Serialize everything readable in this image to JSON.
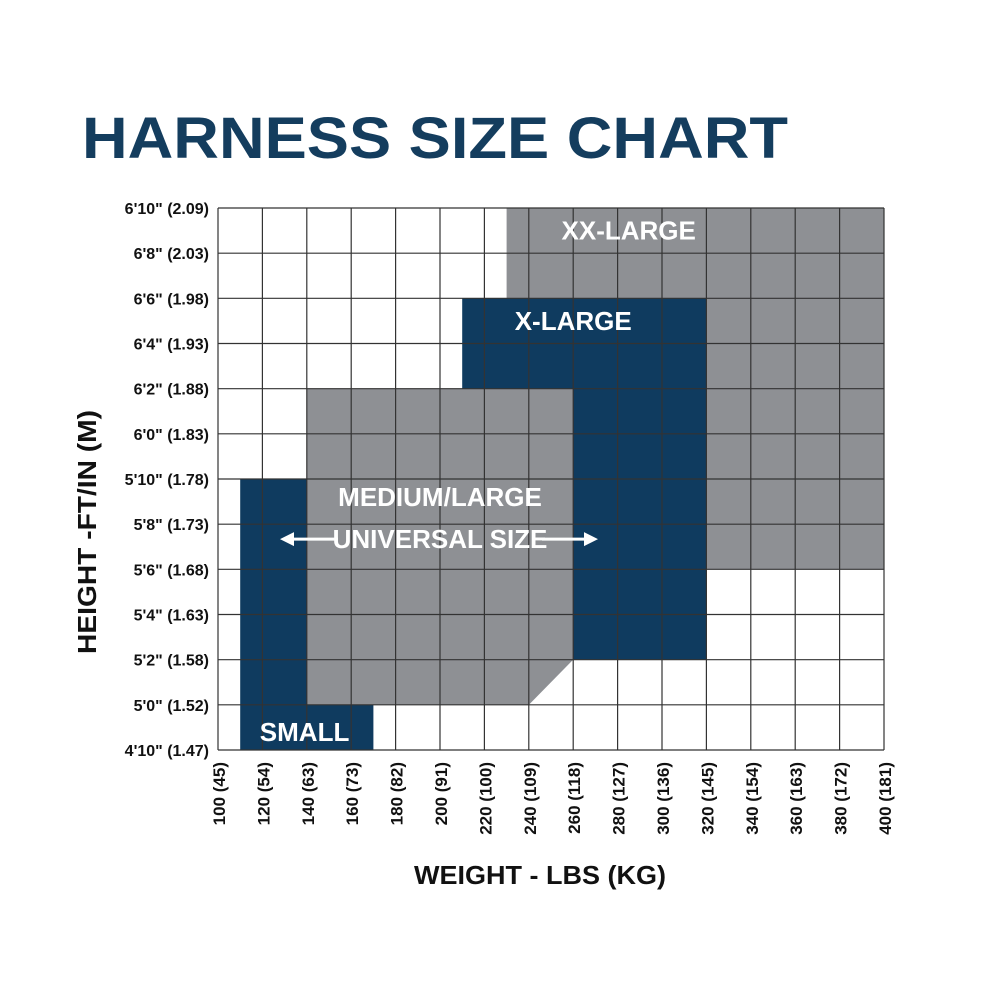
{
  "title": "HARNESS SIZE CHART",
  "colors": {
    "title": "#143d5e",
    "navy": "#0f3b5f",
    "gray": "#8e9094",
    "grid": "#333333",
    "label_text": "#ffffff"
  },
  "chart_data": {
    "type": "region",
    "title": "HARNESS SIZE CHART",
    "xlabel": "WEIGHT - LBS (KG)",
    "ylabel": "HEIGHT -FT/IN (M)",
    "xlim": [
      100,
      400
    ],
    "ylim_inches": [
      58,
      82
    ],
    "grid": true,
    "x_ticks": [
      {
        "lbs": 100,
        "label": "100 (45)"
      },
      {
        "lbs": 120,
        "label": "120 (54)"
      },
      {
        "lbs": 140,
        "label": "140 (63)"
      },
      {
        "lbs": 160,
        "label": "160 (73)"
      },
      {
        "lbs": 180,
        "label": "180 (82)"
      },
      {
        "lbs": 200,
        "label": "200 (91)"
      },
      {
        "lbs": 220,
        "label": "220 (100)"
      },
      {
        "lbs": 240,
        "label": "240 (109)"
      },
      {
        "lbs": 260,
        "label": "260 (118)"
      },
      {
        "lbs": 280,
        "label": "280 (127)"
      },
      {
        "lbs": 300,
        "label": "300 (136)"
      },
      {
        "lbs": 320,
        "label": "320 (145)"
      },
      {
        "lbs": 340,
        "label": "340 (154)"
      },
      {
        "lbs": 360,
        "label": "360 (163)"
      },
      {
        "lbs": 380,
        "label": "380 (172)"
      },
      {
        "lbs": 400,
        "label": "400 (181)"
      }
    ],
    "y_ticks": [
      {
        "inches": 82,
        "label": "6'10\" (2.09)"
      },
      {
        "inches": 80,
        "label": "6'8\" (2.03)"
      },
      {
        "inches": 78,
        "label": "6'6\" (1.98)"
      },
      {
        "inches": 76,
        "label": "6'4\" (1.93)"
      },
      {
        "inches": 74,
        "label": "6'2\" (1.88)"
      },
      {
        "inches": 72,
        "label": "6'0\" (1.83)"
      },
      {
        "inches": 70,
        "label": "5'10\" (1.78)"
      },
      {
        "inches": 68,
        "label": "5'8\" (1.73)"
      },
      {
        "inches": 66,
        "label": "5'6\" (1.68)"
      },
      {
        "inches": 64,
        "label": "5'4\" (1.63)"
      },
      {
        "inches": 62,
        "label": "5'2\" (1.58)"
      },
      {
        "inches": 60,
        "label": "5'0\" (1.52)"
      },
      {
        "inches": 58,
        "label": "4'10\" (1.47)"
      }
    ],
    "regions": [
      {
        "name": "XX-LARGE",
        "color": "gray",
        "label_at": [
          285,
          81
        ],
        "polygon": [
          [
            230,
            82
          ],
          [
            400,
            82
          ],
          [
            400,
            66
          ],
          [
            320,
            66
          ],
          [
            320,
            78
          ],
          [
            230,
            78
          ]
        ]
      },
      {
        "name": "X-LARGE",
        "color": "navy",
        "label_at": [
          260,
          77
        ],
        "polygon": [
          [
            210,
            78
          ],
          [
            320,
            78
          ],
          [
            320,
            62
          ],
          [
            260,
            62
          ],
          [
            260,
            74
          ],
          [
            210,
            74
          ]
        ]
      },
      {
        "name": "MEDIUM/LARGE",
        "sublabel": "UNIVERSAL SIZE",
        "color": "gray",
        "label_at": [
          200,
          69.2
        ],
        "polygon": [
          [
            140,
            74
          ],
          [
            260,
            74
          ],
          [
            260,
            62
          ],
          [
            240,
            60
          ],
          [
            140,
            60
          ]
        ]
      },
      {
        "name": "SMALL",
        "color": "navy",
        "label_at": [
          139,
          58.8
        ],
        "polygon": [
          [
            110,
            70
          ],
          [
            140,
            70
          ],
          [
            140,
            60
          ],
          [
            170,
            60
          ],
          [
            170,
            58
          ],
          [
            110,
            58
          ]
        ]
      }
    ]
  }
}
